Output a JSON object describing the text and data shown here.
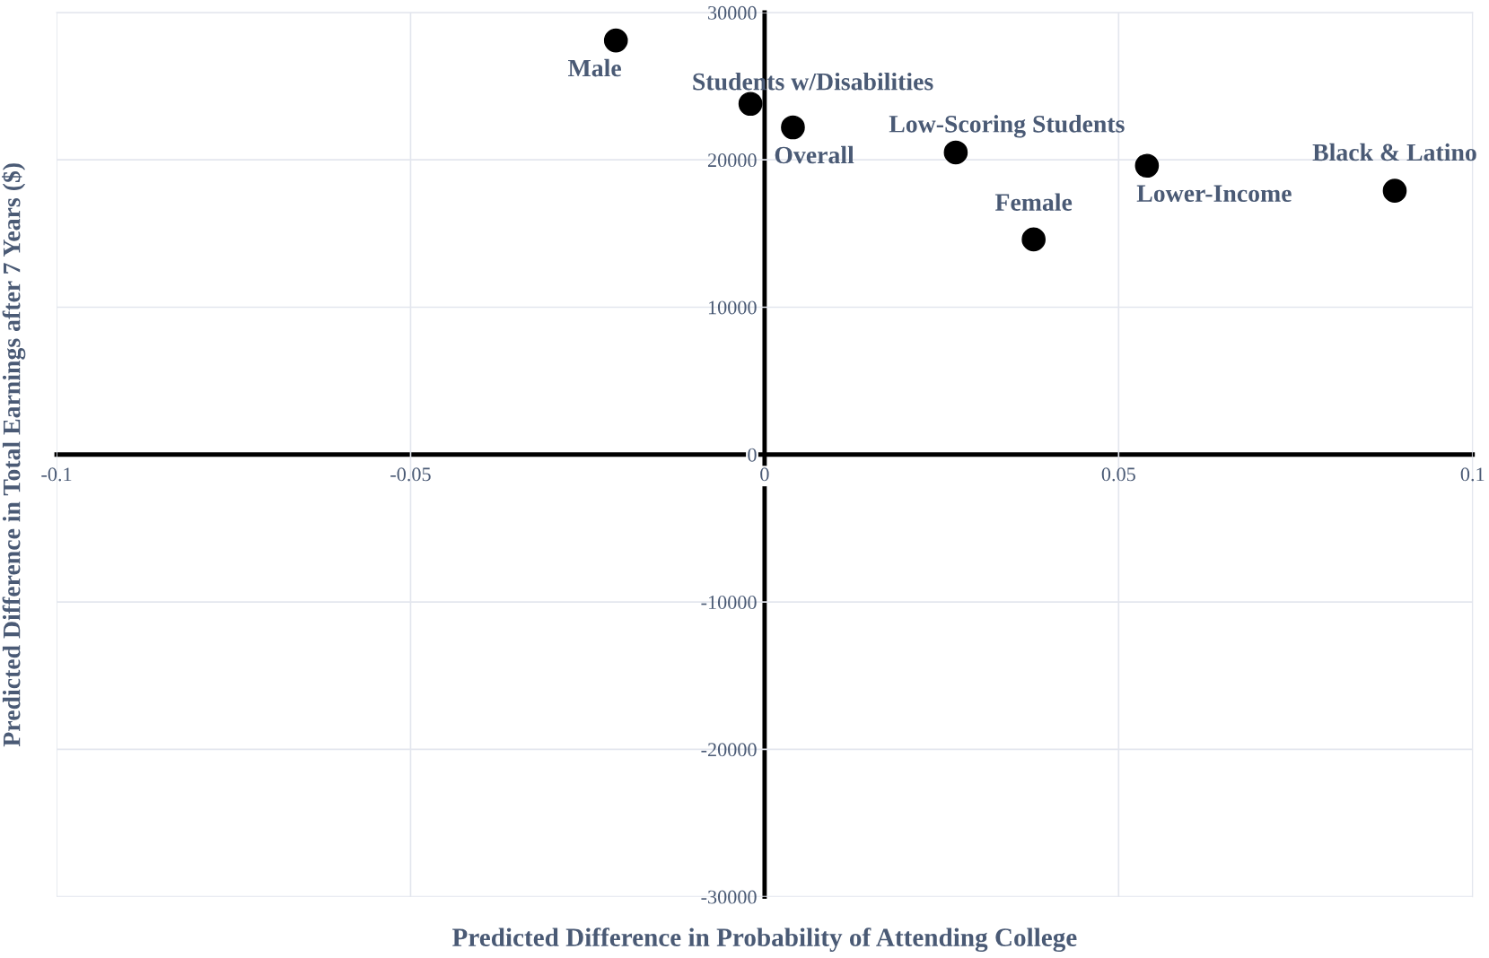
{
  "chart_data": {
    "type": "scatter",
    "xlabel": "Predicted Difference in Probability of Attending College",
    "ylabel": "Predicted Difference in Total Earnings after 7 Years ($)",
    "series": [
      {
        "color": "#000000",
        "x": [
          -0.021,
          -0.002,
          0.004,
          0.027,
          0.038,
          0.054,
          0.089
        ],
        "values": [
          28100,
          23800,
          22200,
          20500,
          14600,
          19600,
          17900
        ]
      }
    ],
    "annotations": [
      {
        "text": "Male",
        "x": -0.021,
        "y": 28100
      },
      {
        "text": "Students w/Disabilities",
        "x": -0.002,
        "y": 23800
      },
      {
        "text": "Overall",
        "x": 0.004,
        "y": 22200
      },
      {
        "text": "Low-Scoring Students",
        "x": 0.027,
        "y": 20500
      },
      {
        "text": "Female",
        "x": 0.038,
        "y": 14600
      },
      {
        "text": "Lower-Income",
        "x": 0.054,
        "y": 19600
      },
      {
        "text": "Black & Latino",
        "x": 0.089,
        "y": 17900
      }
    ],
    "xlim": [
      -0.1,
      0.1
    ],
    "xticks": [
      -0.1,
      -0.05,
      0,
      0.05,
      0.1
    ],
    "ylim": [
      -30000,
      30000
    ],
    "yticks": [
      -30000,
      -20000,
      -10000,
      0,
      10000,
      20000,
      30000
    ],
    "grid": true,
    "marker": "circle"
  }
}
